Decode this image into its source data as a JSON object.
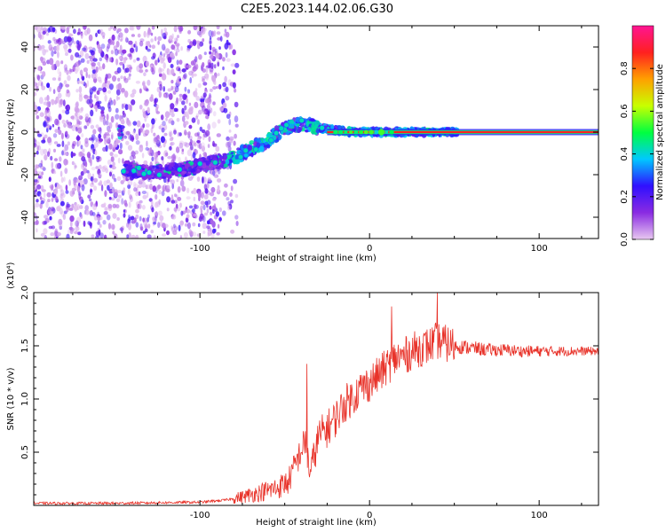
{
  "title": "C2E5.2023.144.02.06.G30",
  "chart_data": [
    {
      "type": "heatmap",
      "name": "spectrogram",
      "xlabel": "Height of straight line (km)",
      "ylabel": "Frequency (Hz)",
      "xlim": [
        -198,
        135
      ],
      "ylim": [
        -50,
        50
      ],
      "xticks": [
        -100,
        0,
        100
      ],
      "xtick_labels": [
        "-100",
        "0",
        "100"
      ],
      "yticks": [
        -40,
        -20,
        0,
        20,
        40
      ],
      "ytick_labels": [
        "-40",
        "-20",
        "0",
        "20",
        "40"
      ],
      "colorbar": {
        "label": "Normalized spectral amplitude",
        "range": [
          0,
          1
        ],
        "ticks": [
          0.0,
          0.2,
          0.4,
          0.6,
          0.8
        ],
        "tick_labels": [
          "0.0",
          "0.2",
          "0.4",
          "0.6",
          "0.8"
        ],
        "colors": [
          "#e8c8f0",
          "#8a2be2",
          "#3010ff",
          "#00c8ff",
          "#00ff40",
          "#c8ff00",
          "#ffa000",
          "#ff2020",
          "#ff1493"
        ]
      },
      "features": {
        "noise_region_x": [
          -198,
          -78
        ],
        "ridge_points": [
          [
            -145,
            -17
          ],
          [
            -130,
            -19
          ],
          [
            -115,
            -18
          ],
          [
            -100,
            -16
          ],
          [
            -90,
            -14
          ],
          [
            -80,
            -12
          ],
          [
            -70,
            -8
          ],
          [
            -60,
            -4
          ],
          [
            -50,
            2
          ],
          [
            -40,
            4
          ],
          [
            -30,
            2
          ],
          [
            -20,
            1
          ],
          [
            -10,
            0
          ],
          [
            0,
            0
          ],
          [
            10,
            0
          ],
          [
            50,
            0
          ],
          [
            100,
            0
          ],
          [
            135,
            0
          ]
        ],
        "carrier_line_x": [
          -25,
          135
        ],
        "carrier_line_y": 0,
        "carrier_color": "#ff2020"
      }
    },
    {
      "type": "line",
      "name": "snr",
      "xlabel": "Height of straight line (km)",
      "ylabel": "SNR (10 * v/v)",
      "y_multiplier": "(x10⁴)",
      "xlim": [
        -198,
        135
      ],
      "ylim": [
        0,
        2.0
      ],
      "xticks": [
        -100,
        0,
        100
      ],
      "xtick_labels": [
        "-100",
        "0",
        "100"
      ],
      "yticks": [
        0.5,
        1.0,
        1.5,
        2.0
      ],
      "ytick_labels": [
        "0.5",
        "1.0",
        "1.5",
        "2.0"
      ],
      "color": "#e8332a",
      "envelope": {
        "x": [
          -198,
          -150,
          -100,
          -85,
          -75,
          -65,
          -55,
          -48,
          -42,
          -38,
          -35,
          -30,
          -25,
          -20,
          -15,
          -10,
          -5,
          0,
          5,
          10,
          15,
          20,
          25,
          30,
          35,
          40,
          45,
          50,
          60,
          70,
          80,
          90,
          100,
          110,
          120,
          130,
          135
        ],
        "y": [
          0.02,
          0.02,
          0.03,
          0.05,
          0.08,
          0.12,
          0.16,
          0.22,
          0.45,
          0.6,
          0.3,
          0.65,
          0.72,
          0.82,
          0.95,
          1.02,
          1.1,
          1.15,
          1.22,
          1.3,
          1.38,
          1.4,
          1.45,
          1.48,
          1.5,
          1.55,
          1.52,
          1.5,
          1.48,
          1.46,
          1.46,
          1.45,
          1.45,
          1.45,
          1.45,
          1.45,
          1.45
        ]
      },
      "peaks": [
        {
          "x": -37,
          "y": 1.33
        },
        {
          "x": 40,
          "y": 2.0
        },
        {
          "x": 13,
          "y": 1.87
        }
      ]
    }
  ]
}
